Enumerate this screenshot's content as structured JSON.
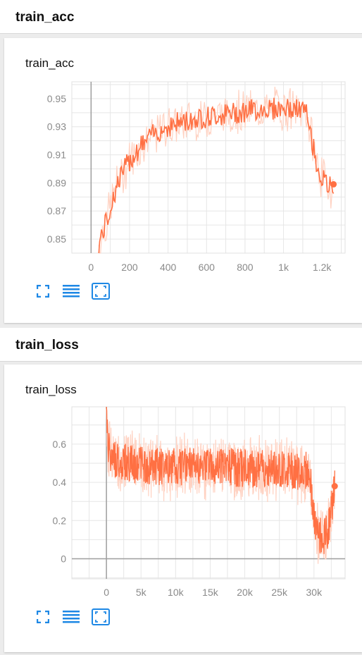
{
  "sections": [
    {
      "header": "train_acc",
      "card_title": "train_acc"
    },
    {
      "header": "train_loss",
      "card_title": "train_loss"
    }
  ],
  "colors": {
    "series": "#ff7043",
    "series_raw": "#ffd2c2",
    "tool_icon": "#1e88e5"
  },
  "toolbar_icons": [
    "fullscreen-icon",
    "list-icon",
    "fit-domain-icon"
  ],
  "chart_data": [
    {
      "type": "line",
      "title": "train_acc",
      "xlabel": "",
      "ylabel": "",
      "xlim": [
        -100,
        1320
      ],
      "ylim": [
        0.84,
        0.962
      ],
      "xticks": [
        0,
        200,
        400,
        600,
        800,
        1000,
        1200
      ],
      "xtick_labels": [
        "0",
        "200",
        "400",
        "600",
        "800",
        "1k",
        "1.2k"
      ],
      "yticks": [
        0.85,
        0.87,
        0.89,
        0.91,
        0.93,
        0.95
      ],
      "ytick_labels": [
        "0.85",
        "0.87",
        "0.89",
        "0.91",
        "0.93",
        "0.95"
      ],
      "grid": true,
      "smoothed": true,
      "series": [
        {
          "x": [
            40,
            60,
            80,
            100,
            120,
            150,
            200,
            250,
            300,
            350,
            400,
            450,
            500,
            550,
            600,
            650,
            700,
            750,
            800,
            850,
            900,
            950,
            1000,
            1050,
            1100,
            1120,
            1140,
            1160,
            1180,
            1200,
            1220,
            1240,
            1260
          ],
          "y": [
            0.846,
            0.855,
            0.862,
            0.872,
            0.882,
            0.894,
            0.906,
            0.915,
            0.922,
            0.927,
            0.93,
            0.933,
            0.934,
            0.936,
            0.937,
            0.938,
            0.939,
            0.94,
            0.941,
            0.942,
            0.943,
            0.943,
            0.943,
            0.942,
            0.942,
            0.939,
            0.925,
            0.912,
            0.9,
            0.893,
            0.889,
            0.887,
            0.889
          ]
        }
      ]
    },
    {
      "type": "line",
      "title": "train_loss",
      "xlabel": "",
      "ylabel": "",
      "xlim": [
        -5000,
        34500
      ],
      "ylim": [
        -0.105,
        0.795
      ],
      "xticks": [
        0,
        5000,
        10000,
        15000,
        20000,
        25000,
        30000
      ],
      "xtick_labels": [
        "0",
        "5k",
        "10k",
        "15k",
        "20k",
        "25k",
        "30k"
      ],
      "yticks": [
        0,
        0.2,
        0.4,
        0.6
      ],
      "ytick_labels": [
        "0",
        "0.2",
        "0.4",
        "0.6"
      ],
      "grid": true,
      "smoothed": true,
      "series": [
        {
          "x": [
            0,
            300,
            1000,
            2000,
            3000,
            5000,
            7000,
            10000,
            13000,
            15000,
            18000,
            20000,
            23000,
            25000,
            27000,
            29000,
            29500,
            30000,
            30500,
            31000,
            32000,
            33000
          ],
          "y": [
            0.72,
            0.58,
            0.53,
            0.51,
            0.5,
            0.49,
            0.48,
            0.48,
            0.48,
            0.48,
            0.48,
            0.47,
            0.47,
            0.47,
            0.46,
            0.46,
            0.4,
            0.2,
            0.12,
            0.12,
            0.13,
            0.38
          ]
        }
      ]
    }
  ]
}
